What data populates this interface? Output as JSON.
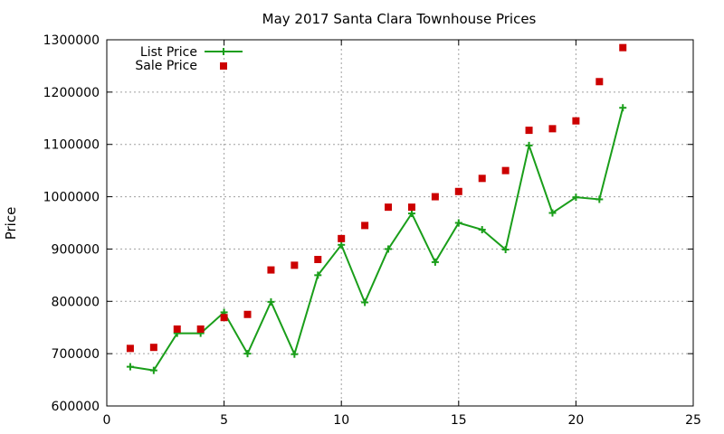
{
  "chart_data": {
    "type": "line",
    "title": "May 2017 Santa Clara Townhouse Prices",
    "xlabel": "",
    "ylabel": "Price",
    "xlim": [
      0,
      25
    ],
    "ylim": [
      600000,
      1300000
    ],
    "xticks": [
      0,
      5,
      10,
      15,
      20,
      25
    ],
    "yticks": [
      600000,
      700000,
      800000,
      900000,
      1000000,
      1100000,
      1200000,
      1300000
    ],
    "grid": true,
    "legend_position": "top-left",
    "x": [
      1,
      2,
      3,
      4,
      5,
      6,
      7,
      8,
      9,
      10,
      11,
      12,
      13,
      14,
      15,
      16,
      17,
      18,
      19,
      20,
      21,
      22
    ],
    "series": [
      {
        "name": "List Price",
        "style": "line+cross",
        "color": "#1a9e1a",
        "values": [
          675000,
          668000,
          739000,
          739000,
          779000,
          700000,
          799000,
          699000,
          850000,
          908000,
          798000,
          900000,
          968000,
          875000,
          950000,
          937000,
          899000,
          1098000,
          969000,
          999000,
          995000,
          1170000
        ]
      },
      {
        "name": "Sale Price",
        "style": "square-marker",
        "color": "#cc0000",
        "values": [
          710000,
          712000,
          747000,
          747000,
          769000,
          775000,
          860000,
          869000,
          880000,
          920000,
          945000,
          980000,
          980000,
          1000000,
          1010000,
          1035000,
          1050000,
          1127000,
          1130000,
          1145000,
          1220000,
          1285000
        ]
      }
    ]
  }
}
